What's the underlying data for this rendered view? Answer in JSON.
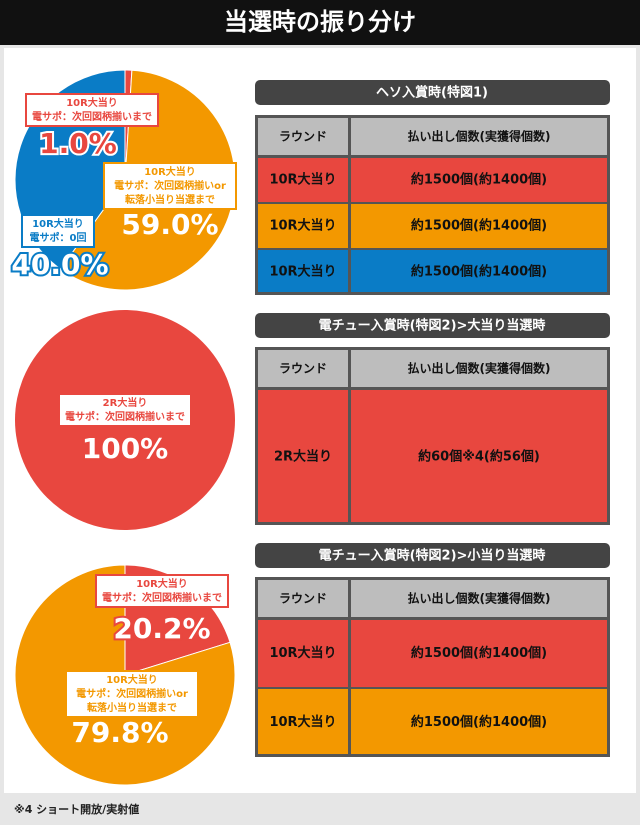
{
  "header": {
    "title": "当選時の振り分け"
  },
  "chart_data": [
    {
      "type": "pie",
      "categories": [
        [
          "10R大当り",
          "電サポ：次回図柄揃いまで"
        ],
        [
          "10R大当り",
          "電サポ：次回図柄揃いor",
          "転落小当り当選まで"
        ],
        [
          "10R大当り",
          "電サポ：0回"
        ]
      ],
      "values": [
        1.0,
        59.0,
        40.0
      ],
      "value_labels": [
        "1.0%",
        "59.0%",
        "40.0%"
      ],
      "colors": [
        "#e8473f",
        "#f39800",
        "#0a7cc6"
      ]
    },
    {
      "type": "pie",
      "categories": [
        [
          "2R大当り",
          "電サポ：次回図柄揃いまで"
        ]
      ],
      "values": [
        100
      ],
      "value_labels": [
        "100%"
      ],
      "colors": [
        "#e8473f"
      ]
    },
    {
      "type": "pie",
      "categories": [
        [
          "10R大当り",
          "電サポ：次回図柄揃いまで"
        ],
        [
          "10R大当り",
          "電サポ：次回図柄揃いor",
          "転落小当り当選まで"
        ]
      ],
      "values": [
        20.2,
        79.8
      ],
      "value_labels": [
        "20.2%",
        "79.8%"
      ],
      "colors": [
        "#e8473f",
        "#f39800"
      ]
    }
  ],
  "tables": [
    {
      "heading": "ヘソ入賞時(特図1)",
      "columns": [
        "ラウンド",
        "払い出し個数(実獲得個数)"
      ],
      "rows": [
        [
          "10R大当り",
          "約1500個(約1400個)"
        ],
        [
          "10R大当り",
          "約1500個(約1400個)"
        ],
        [
          "10R大当り",
          "約1500個(約1400個)"
        ]
      ],
      "row_colors": [
        "#e8473f",
        "#f39800",
        "#0a7cc6"
      ]
    },
    {
      "heading": "電チュー入賞時(特図2)>大当り当選時",
      "columns": [
        "ラウンド",
        "払い出し個数(実獲得個数)"
      ],
      "rows": [
        [
          "2R大当り",
          "約60個※4(約56個)"
        ]
      ],
      "row_colors": [
        "#e8473f"
      ]
    },
    {
      "heading": "電チュー入賞時(特図2)>小当り当選時",
      "columns": [
        "ラウンド",
        "払い出し個数(実獲得個数)"
      ],
      "rows": [
        [
          "10R大当り",
          "約1500個(約1400個)"
        ],
        [
          "10R大当り",
          "約1500個(約1400個)"
        ]
      ],
      "row_colors": [
        "#e8473f",
        "#f39800"
      ]
    }
  ],
  "footnote": "※4 ショート開放/実射値"
}
